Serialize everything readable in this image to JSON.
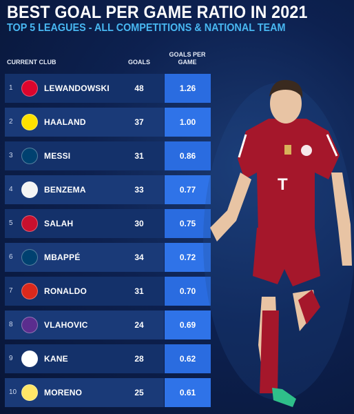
{
  "header": {
    "title": "BEST GOAL PER GAME RATIO IN 2021",
    "subtitle": "TOP 5 LEAGUES - ALL COMPETITIONS & NATIONAL TEAM"
  },
  "columns": {
    "club": "CURRENT CLUB",
    "goals": "GOALS",
    "ratio_line1": "GOALS PER",
    "ratio_line2": "GAME"
  },
  "rows": [
    {
      "rank": "1",
      "name": "LEWANDOWSKI",
      "goals": "48",
      "ratio": "1.26",
      "crest_color": "#dc052d",
      "crest_icon": "bayern-crest-icon"
    },
    {
      "rank": "2",
      "name": "HAALAND",
      "goals": "37",
      "ratio": "1.00",
      "crest_color": "#fde100",
      "crest_icon": "dortmund-crest-icon"
    },
    {
      "rank": "3",
      "name": "MESSI",
      "goals": "31",
      "ratio": "0.86",
      "crest_color": "#004170",
      "crest_icon": "psg-crest-icon"
    },
    {
      "rank": "4",
      "name": "BENZEMA",
      "goals": "33",
      "ratio": "0.77",
      "crest_color": "#f4f4f4",
      "crest_icon": "real-madrid-crest-icon"
    },
    {
      "rank": "5",
      "name": "SALAH",
      "goals": "30",
      "ratio": "0.75",
      "crest_color": "#c8102e",
      "crest_icon": "liverpool-crest-icon"
    },
    {
      "rank": "6",
      "name": "MBAPPÉ",
      "goals": "34",
      "ratio": "0.72",
      "crest_color": "#004170",
      "crest_icon": "psg-crest-icon"
    },
    {
      "rank": "7",
      "name": "RONALDO",
      "goals": "31",
      "ratio": "0.70",
      "crest_color": "#da291c",
      "crest_icon": "man-united-crest-icon"
    },
    {
      "rank": "8",
      "name": "VLAHOVIC",
      "goals": "24",
      "ratio": "0.69",
      "crest_color": "#5b2d8e",
      "crest_icon": "fiorentina-crest-icon"
    },
    {
      "rank": "9",
      "name": "KANE",
      "goals": "28",
      "ratio": "0.62",
      "crest_color": "#ffffff",
      "crest_icon": "tottenham-crest-icon"
    },
    {
      "rank": "10",
      "name": "MORENO",
      "goals": "25",
      "ratio": "0.61",
      "crest_color": "#ffe667",
      "crest_icon": "villarreal-crest-icon"
    }
  ],
  "colors": {
    "ratio_cell": "#2a6ce0",
    "subtitle": "#48b7f1",
    "jersey": "#a5172b"
  }
}
